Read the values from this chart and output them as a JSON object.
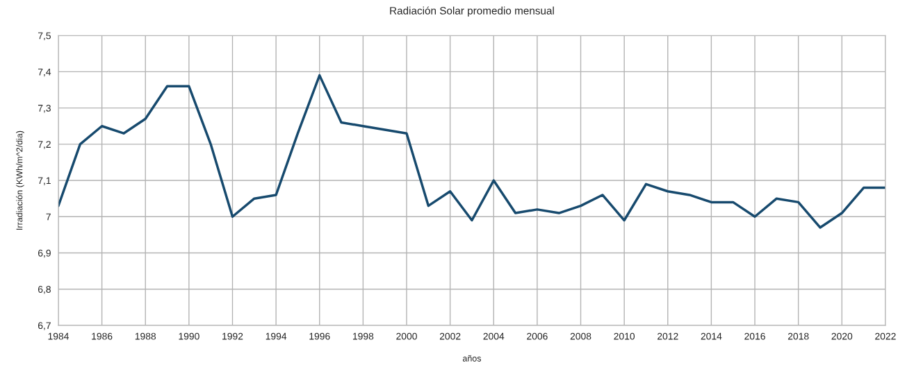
{
  "chart_data": {
    "type": "line",
    "title": "Radiación Solar promedio mensual",
    "xlabel": "años",
    "ylabel": "Irradiación (KWh/m^2/dia)",
    "x": [
      1984,
      1985,
      1986,
      1987,
      1988,
      1989,
      1990,
      1991,
      1992,
      1993,
      1994,
      1995,
      1996,
      1997,
      1998,
      1999,
      2000,
      2001,
      2002,
      2003,
      2004,
      2005,
      2006,
      2007,
      2008,
      2009,
      2010,
      2011,
      2012,
      2013,
      2014,
      2015,
      2016,
      2017,
      2018,
      2019,
      2020,
      2021,
      2022
    ],
    "series": [
      {
        "color": "#174a6e",
        "values": [
          7.03,
          7.2,
          7.25,
          7.23,
          7.27,
          7.36,
          7.36,
          7.2,
          7.0,
          7.05,
          7.06,
          7.23,
          7.39,
          7.26,
          7.25,
          7.24,
          7.23,
          7.03,
          7.07,
          6.99,
          7.1,
          7.01,
          7.02,
          7.01,
          7.03,
          7.06,
          6.99,
          7.09,
          7.07,
          7.06,
          7.04,
          7.04,
          7.0,
          7.05,
          7.04,
          6.97,
          7.01,
          7.08,
          7.08
        ]
      }
    ],
    "xlim": [
      1984,
      2022
    ],
    "xticks": [
      1984,
      1986,
      1988,
      1990,
      1992,
      1994,
      1996,
      1998,
      2000,
      2002,
      2004,
      2006,
      2008,
      2010,
      2012,
      2014,
      2016,
      2018,
      2020,
      2022
    ],
    "ylim": [
      6.7,
      7.5
    ],
    "yticks": [
      {
        "value": 6.7,
        "label": "6,7"
      },
      {
        "value": 6.8,
        "label": "6,8"
      },
      {
        "value": 6.9,
        "label": "6,9"
      },
      {
        "value": 7,
        "label": "7"
      },
      {
        "value": 7.1,
        "label": "7,1"
      },
      {
        "value": 7.2,
        "label": "7,2"
      },
      {
        "value": 7.3,
        "label": "7,3"
      },
      {
        "value": 7.4,
        "label": "7,4"
      },
      {
        "value": 7.5,
        "label": "7,5"
      }
    ],
    "grid": true,
    "marker": "none",
    "line_style": "solid",
    "legend": false
  }
}
